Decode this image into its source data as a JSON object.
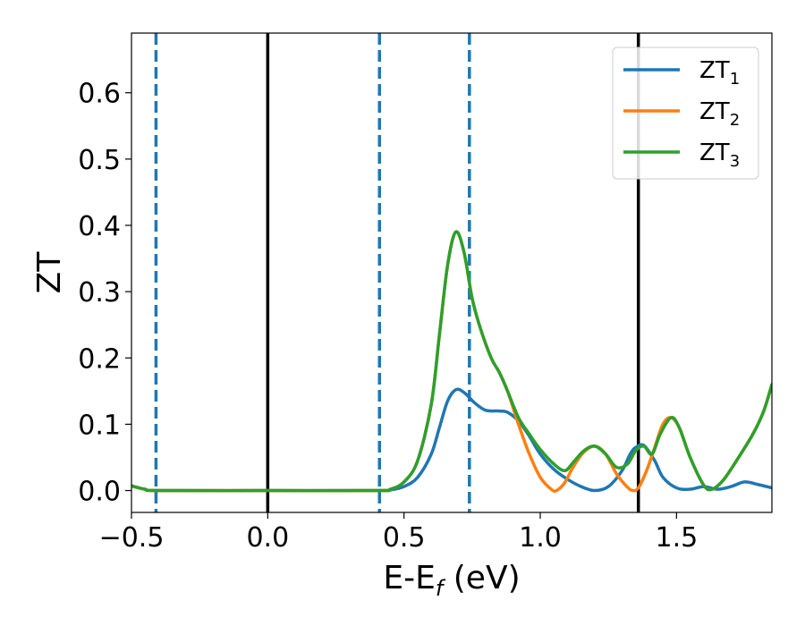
{
  "chart_data": {
    "type": "line",
    "title": "",
    "xlabel_main": "E-E",
    "xlabel_sub": "f",
    "xlabel_unit": " (eV)",
    "ylabel": "ZT",
    "xlim": [
      -0.5,
      1.85
    ],
    "ylim": [
      -0.033,
      0.69
    ],
    "grid": false,
    "legend_position": "top-right",
    "x_ticks": [
      {
        "value": -0.5,
        "label": "−0.5"
      },
      {
        "value": 0.0,
        "label": "0.0"
      },
      {
        "value": 0.5,
        "label": "0.5"
      },
      {
        "value": 1.0,
        "label": "1.0"
      },
      {
        "value": 1.5,
        "label": "1.5"
      }
    ],
    "y_ticks": [
      {
        "value": 0.0,
        "label": "0.0"
      },
      {
        "value": 0.1,
        "label": "0.1"
      },
      {
        "value": 0.2,
        "label": "0.2"
      },
      {
        "value": 0.3,
        "label": "0.3"
      },
      {
        "value": 0.4,
        "label": "0.4"
      },
      {
        "value": 0.5,
        "label": "0.5"
      },
      {
        "value": 0.6,
        "label": "0.6"
      }
    ],
    "vertical_lines": [
      {
        "x": -0.41,
        "color": "#1f77b4",
        "style": "dashed"
      },
      {
        "x": 0.0,
        "color": "#000000",
        "style": "solid"
      },
      {
        "x": 0.41,
        "color": "#1f77b4",
        "style": "dashed"
      },
      {
        "x": 0.74,
        "color": "#1f77b4",
        "style": "dashed"
      },
      {
        "x": 1.36,
        "color": "#000000",
        "style": "solid"
      }
    ],
    "series": [
      {
        "name": "ZT",
        "subscript": "1",
        "color": "#1f77b4",
        "points": [
          [
            -0.5,
            0.007
          ],
          [
            -0.45,
            0.002
          ],
          [
            -0.4,
            0.0
          ],
          [
            0.0,
            0.0
          ],
          [
            0.4,
            0.0
          ],
          [
            0.45,
            0.001
          ],
          [
            0.5,
            0.006
          ],
          [
            0.55,
            0.02
          ],
          [
            0.6,
            0.055
          ],
          [
            0.63,
            0.095
          ],
          [
            0.66,
            0.135
          ],
          [
            0.69,
            0.152
          ],
          [
            0.72,
            0.148
          ],
          [
            0.76,
            0.132
          ],
          [
            0.8,
            0.121
          ],
          [
            0.85,
            0.12
          ],
          [
            0.88,
            0.118
          ],
          [
            0.92,
            0.105
          ],
          [
            0.96,
            0.082
          ],
          [
            1.0,
            0.055
          ],
          [
            1.05,
            0.032
          ],
          [
            1.1,
            0.017
          ],
          [
            1.15,
            0.006
          ],
          [
            1.2,
            0.0
          ],
          [
            1.25,
            0.006
          ],
          [
            1.3,
            0.03
          ],
          [
            1.33,
            0.055
          ],
          [
            1.35,
            0.065
          ],
          [
            1.38,
            0.068
          ],
          [
            1.42,
            0.045
          ],
          [
            1.45,
            0.02
          ],
          [
            1.5,
            0.004
          ],
          [
            1.55,
            0.002
          ],
          [
            1.6,
            0.006
          ],
          [
            1.65,
            0.002
          ],
          [
            1.7,
            0.006
          ],
          [
            1.75,
            0.013
          ],
          [
            1.8,
            0.009
          ],
          [
            1.85,
            0.004
          ]
        ]
      },
      {
        "name": "ZT",
        "subscript": "2",
        "color": "#ff7f0e",
        "points": [
          [
            -0.5,
            0.007
          ],
          [
            -0.45,
            0.002
          ],
          [
            -0.4,
            0.0
          ],
          [
            0.0,
            0.0
          ],
          [
            0.4,
            0.0
          ],
          [
            0.45,
            0.002
          ],
          [
            0.5,
            0.013
          ],
          [
            0.55,
            0.045
          ],
          [
            0.6,
            0.13
          ],
          [
            0.63,
            0.235
          ],
          [
            0.66,
            0.34
          ],
          [
            0.69,
            0.39
          ],
          [
            0.72,
            0.36
          ],
          [
            0.75,
            0.29
          ],
          [
            0.78,
            0.245
          ],
          [
            0.82,
            0.2
          ],
          [
            0.85,
            0.178
          ],
          [
            0.88,
            0.15
          ],
          [
            0.92,
            0.1
          ],
          [
            0.96,
            0.055
          ],
          [
            1.0,
            0.02
          ],
          [
            1.04,
            0.002
          ],
          [
            1.06,
            0.0
          ],
          [
            1.09,
            0.012
          ],
          [
            1.12,
            0.035
          ],
          [
            1.16,
            0.058
          ],
          [
            1.2,
            0.067
          ],
          [
            1.24,
            0.055
          ],
          [
            1.28,
            0.025
          ],
          [
            1.32,
            0.005
          ],
          [
            1.34,
            0.0
          ],
          [
            1.36,
            0.004
          ],
          [
            1.39,
            0.03
          ],
          [
            1.42,
            0.065
          ],
          [
            1.45,
            0.1
          ],
          [
            1.48,
            0.11
          ],
          [
            1.51,
            0.095
          ],
          [
            1.55,
            0.05
          ],
          [
            1.6,
            0.008
          ],
          [
            1.63,
            0.002
          ],
          [
            1.67,
            0.015
          ],
          [
            1.72,
            0.045
          ],
          [
            1.78,
            0.085
          ],
          [
            1.82,
            0.12
          ],
          [
            1.85,
            0.16
          ]
        ]
      },
      {
        "name": "ZT",
        "subscript": "3",
        "color": "#2ca02c",
        "points": [
          [
            -0.5,
            0.007
          ],
          [
            -0.45,
            0.002
          ],
          [
            -0.4,
            0.0
          ],
          [
            0.0,
            0.0
          ],
          [
            0.4,
            0.0
          ],
          [
            0.45,
            0.002
          ],
          [
            0.5,
            0.013
          ],
          [
            0.55,
            0.045
          ],
          [
            0.6,
            0.13
          ],
          [
            0.63,
            0.235
          ],
          [
            0.66,
            0.34
          ],
          [
            0.69,
            0.39
          ],
          [
            0.72,
            0.36
          ],
          [
            0.75,
            0.29
          ],
          [
            0.78,
            0.245
          ],
          [
            0.82,
            0.2
          ],
          [
            0.85,
            0.178
          ],
          [
            0.88,
            0.15
          ],
          [
            0.92,
            0.11
          ],
          [
            0.96,
            0.085
          ],
          [
            1.0,
            0.062
          ],
          [
            1.05,
            0.04
          ],
          [
            1.09,
            0.03
          ],
          [
            1.12,
            0.042
          ],
          [
            1.16,
            0.06
          ],
          [
            1.2,
            0.067
          ],
          [
            1.24,
            0.055
          ],
          [
            1.28,
            0.035
          ],
          [
            1.32,
            0.04
          ],
          [
            1.35,
            0.06
          ],
          [
            1.38,
            0.067
          ],
          [
            1.41,
            0.055
          ],
          [
            1.44,
            0.085
          ],
          [
            1.48,
            0.11
          ],
          [
            1.51,
            0.095
          ],
          [
            1.55,
            0.05
          ],
          [
            1.6,
            0.008
          ],
          [
            1.63,
            0.002
          ],
          [
            1.67,
            0.015
          ],
          [
            1.72,
            0.045
          ],
          [
            1.78,
            0.085
          ],
          [
            1.82,
            0.12
          ],
          [
            1.85,
            0.16
          ]
        ]
      }
    ]
  }
}
